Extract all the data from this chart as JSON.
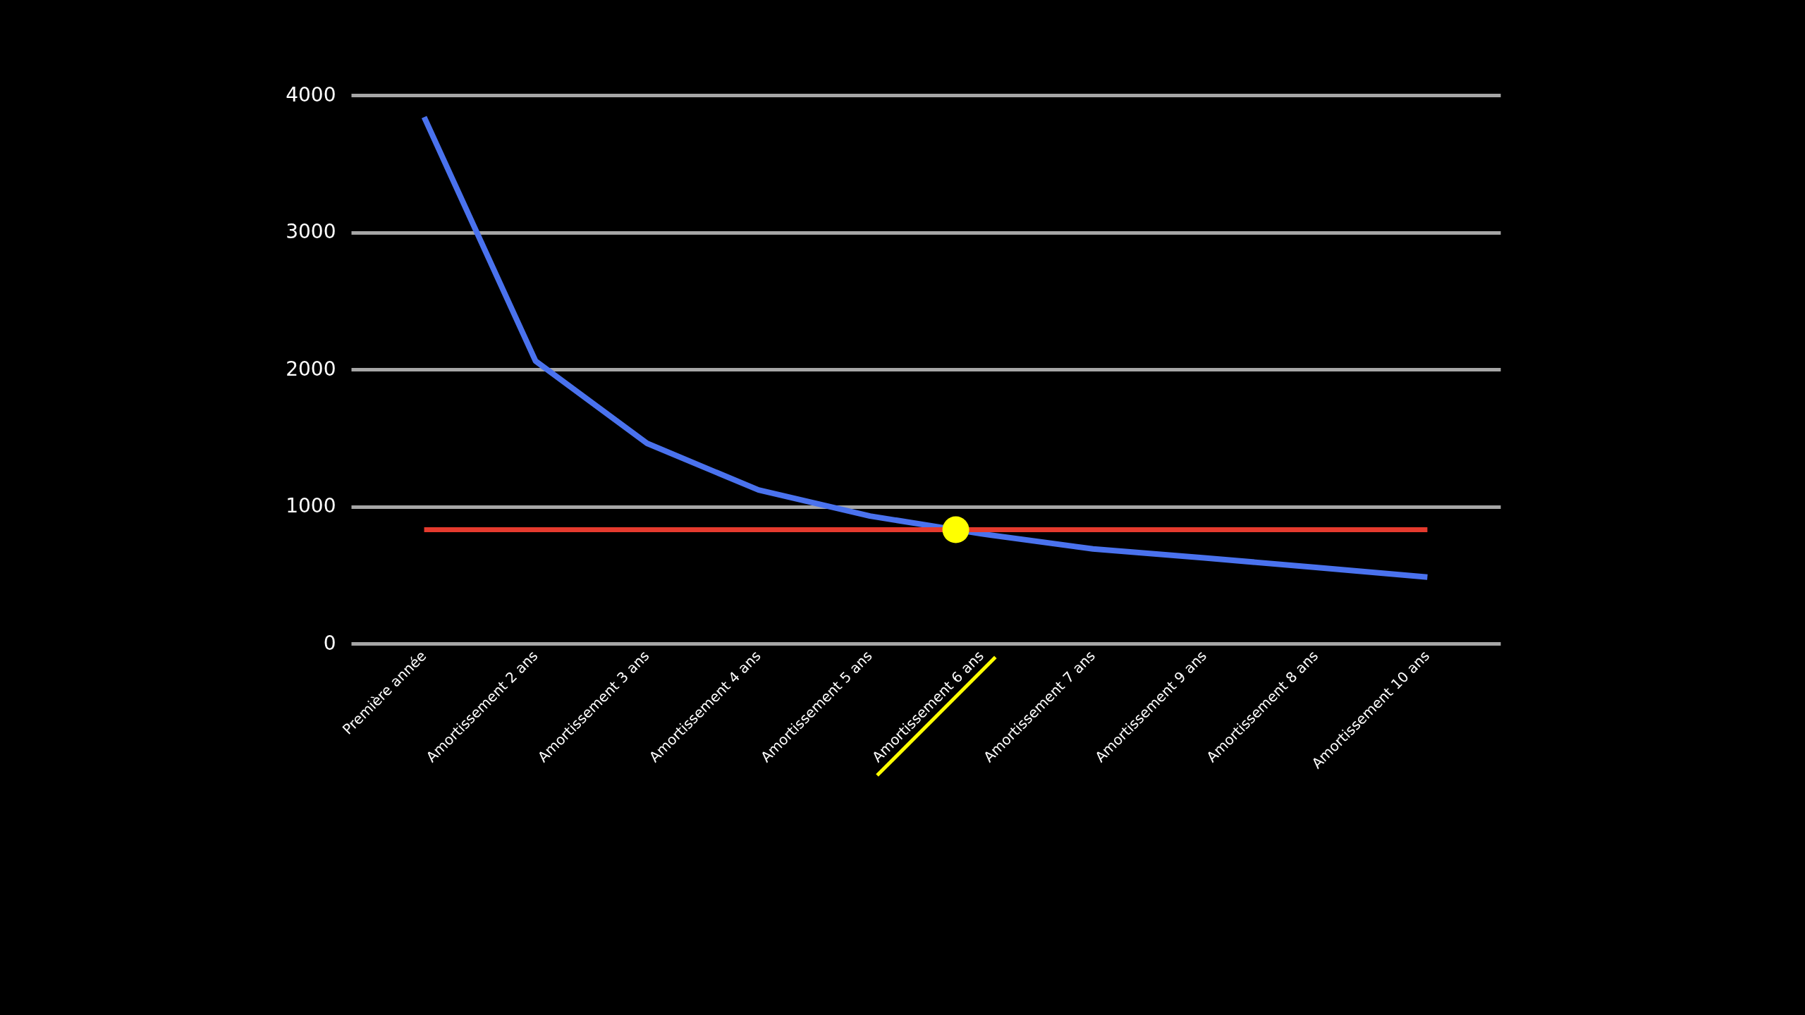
{
  "chart_data": {
    "type": "line",
    "categories": [
      "Première année",
      "Amortissement 2 ans",
      "Amortissement 3 ans",
      "Amortissement 4 ans",
      "Amortissement 5 ans",
      "Amortissement 6 ans",
      "Amortissement 7 ans",
      "Amortissement 9 ans",
      "Amortissement 8 ans",
      "Amortissement 10 ans"
    ],
    "series": [
      {
        "color": "#4a72ee",
        "values": [
          3840,
          2060,
          1460,
          1120,
          930,
          800,
          690,
          625,
          555,
          485
        ]
      }
    ],
    "ylim": [
      0,
      4000
    ],
    "yticks": [
      0,
      1000,
      2000,
      3000,
      4000
    ],
    "grid": "y",
    "marker": "none",
    "line_style": "solid",
    "ref_lines": [
      {
        "axis": "y",
        "value": 830,
        "color": "#e53a2e"
      }
    ]
  }
}
